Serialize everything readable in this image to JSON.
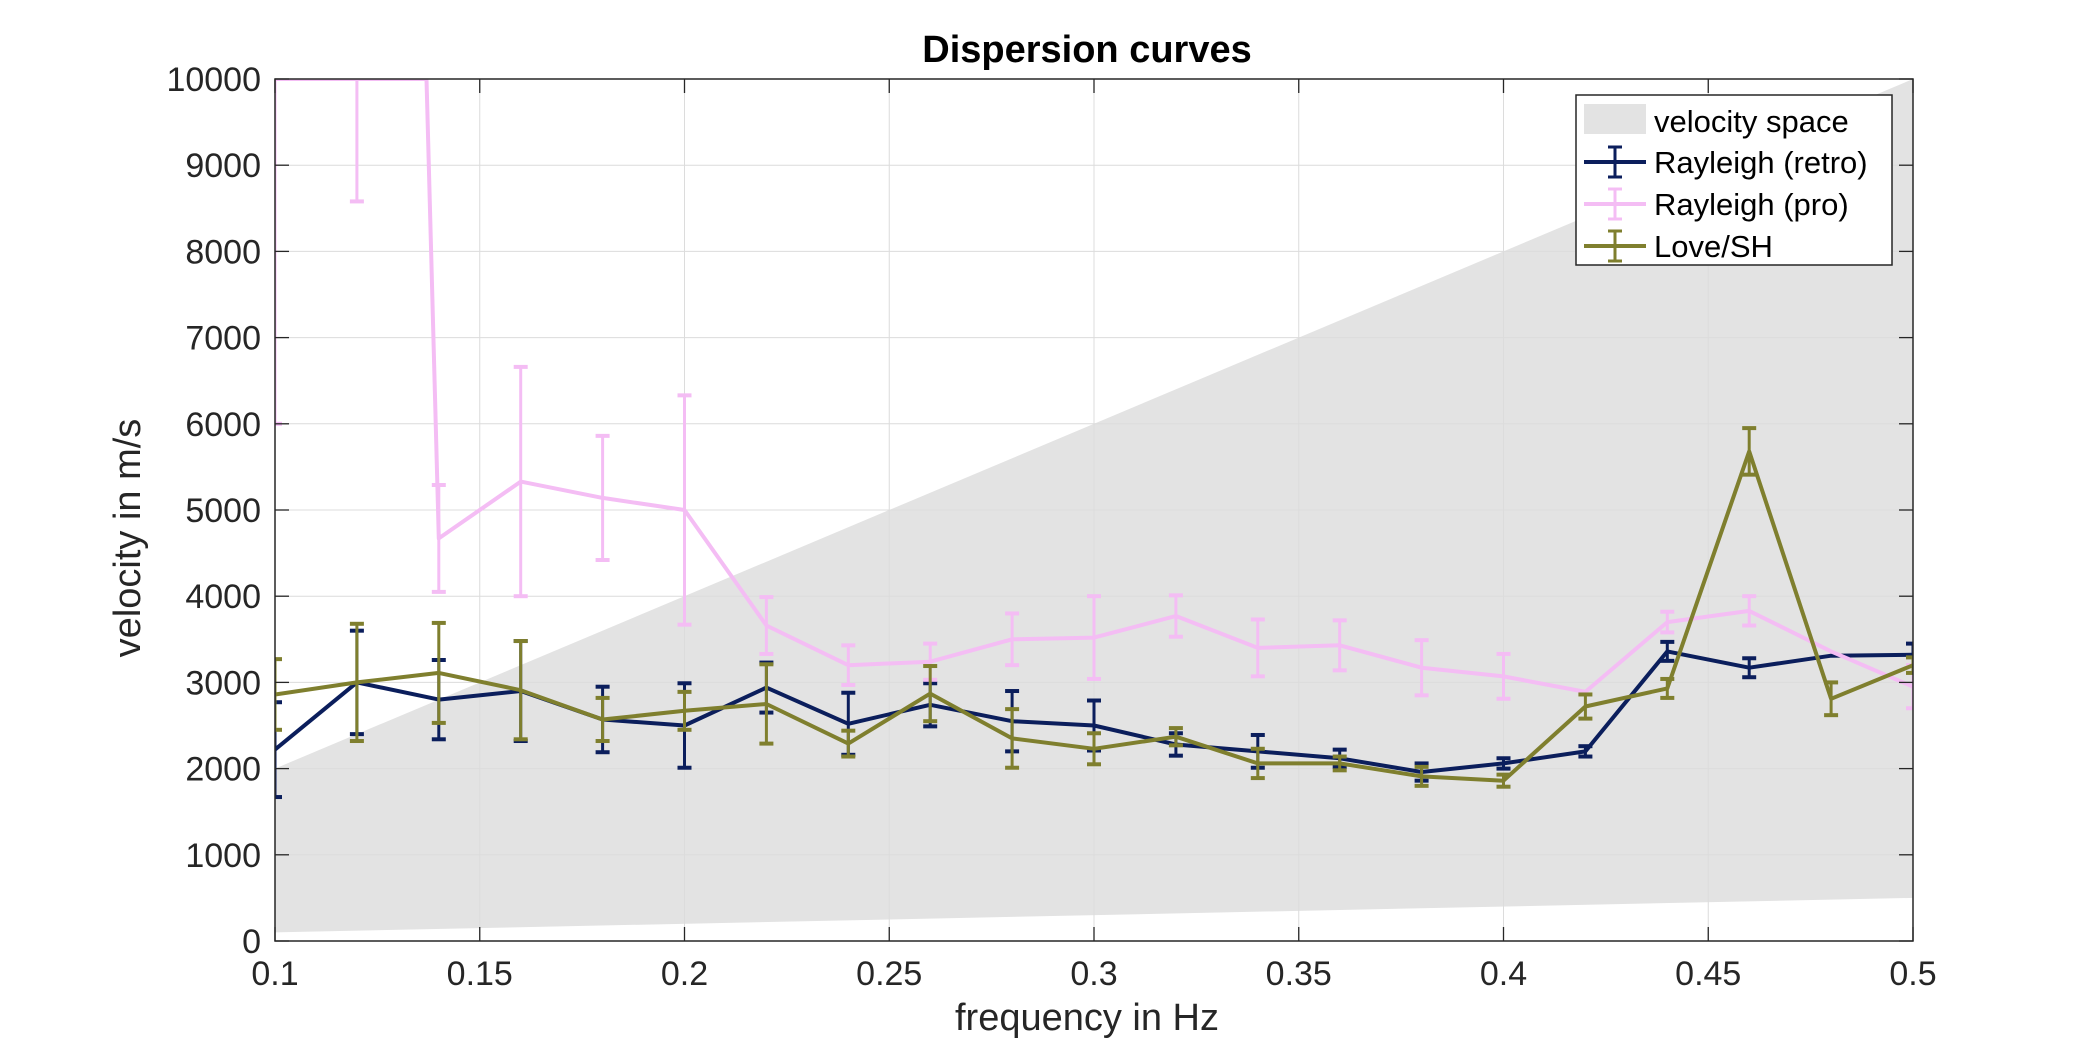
{
  "chart_data": {
    "type": "line",
    "title": "Dispersion curves",
    "xlabel": "frequency in Hz",
    "ylabel": "velocity in m/s",
    "xlim": [
      0.1,
      0.5
    ],
    "ylim": [
      0,
      10000
    ],
    "xticks": [
      "0.1",
      "0.15",
      "0.2",
      "0.25",
      "0.3",
      "0.35",
      "0.4",
      "0.45",
      "0.5"
    ],
    "yticks": [
      "0",
      "1000",
      "2000",
      "3000",
      "4000",
      "5000",
      "6000",
      "7000",
      "8000",
      "9000",
      "10000"
    ],
    "grid": true,
    "legend_position": "top-right",
    "velocity_space": {
      "name": "velocity space",
      "color": "#e3e3e3",
      "polygon": [
        [
          0.1,
          100
        ],
        [
          0.5,
          500
        ],
        [
          0.5,
          10000
        ],
        [
          0.1,
          2000
        ]
      ]
    },
    "series": [
      {
        "name": "Rayleigh (retro)",
        "color": "#0b1e5c",
        "x": [
          0.1,
          0.12,
          0.14,
          0.16,
          0.18,
          0.2,
          0.22,
          0.24,
          0.26,
          0.28,
          0.3,
          0.32,
          0.34,
          0.36,
          0.38,
          0.4,
          0.42,
          0.44,
          0.46,
          0.48,
          0.5
        ],
        "y": [
          2220,
          3000,
          2800,
          2900,
          2570,
          2500,
          2940,
          2520,
          2740,
          2550,
          2500,
          2280,
          2200,
          2120,
          1960,
          2060,
          2200,
          3360,
          3170,
          3310,
          3320
        ],
        "err": [
          550,
          600,
          460,
          580,
          380,
          490,
          290,
          360,
          250,
          350,
          290,
          130,
          190,
          100,
          100,
          60,
          60,
          110,
          110,
          0,
          130
        ]
      },
      {
        "name": "Rayleigh (pro)",
        "color": "#f4bdf4",
        "x": [
          0.1,
          0.12,
          0.137,
          0.14,
          0.16,
          0.18,
          0.2,
          0.22,
          0.24,
          0.26,
          0.28,
          0.3,
          0.32,
          0.34,
          0.36,
          0.38,
          0.4,
          0.42,
          0.44,
          0.46,
          0.48,
          0.5
        ],
        "y": [
          10000,
          10000,
          10000,
          4670,
          5330,
          5140,
          5000,
          3660,
          3200,
          3240,
          3500,
          3520,
          3770,
          3400,
          3430,
          3170,
          3070,
          2890,
          3700,
          3830,
          3360,
          2950
        ],
        "err": [
          4000,
          1420,
          0,
          620,
          1330,
          720,
          1330,
          330,
          230,
          210,
          300,
          480,
          240,
          330,
          290,
          320,
          260,
          0,
          120,
          170,
          0,
          250
        ]
      },
      {
        "name": "Love/SH",
        "color": "#7f7f2e",
        "x": [
          0.1,
          0.12,
          0.14,
          0.16,
          0.18,
          0.2,
          0.22,
          0.24,
          0.26,
          0.28,
          0.3,
          0.32,
          0.34,
          0.36,
          0.38,
          0.4,
          0.42,
          0.44,
          0.46,
          0.48,
          0.5
        ],
        "y": [
          2860,
          3000,
          3110,
          2910,
          2570,
          2670,
          2750,
          2290,
          2870,
          2350,
          2230,
          2370,
          2060,
          2060,
          1910,
          1860,
          2720,
          2930,
          5680,
          2810,
          3200
        ],
        "err": [
          410,
          680,
          580,
          570,
          250,
          220,
          460,
          150,
          320,
          340,
          180,
          100,
          170,
          80,
          110,
          70,
          140,
          110,
          270,
          190,
          90
        ]
      }
    ]
  }
}
